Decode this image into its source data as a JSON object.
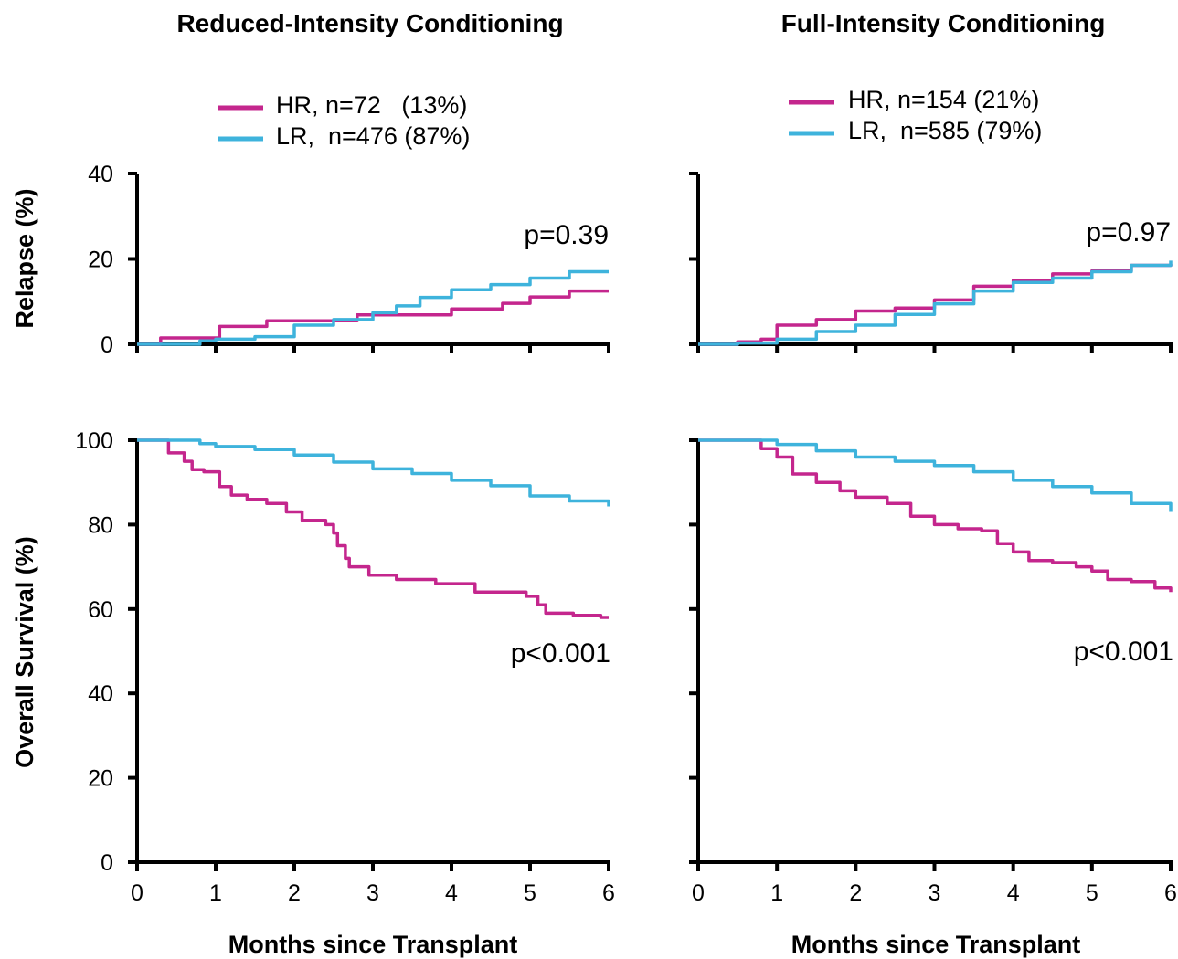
{
  "figure": {
    "columns": [
      {
        "title": "Reduced-Intensity Conditioning",
        "xlabel": "Months since Transplant",
        "legend": [
          {
            "label": "HR, n=72   (13%)",
            "color": "#c4268d"
          },
          {
            "label": "LR,  n=476 (87%)",
            "color": "#3eb3dc"
          }
        ]
      },
      {
        "title": "Full-Intensity Conditioning",
        "xlabel": "Months since Transplant",
        "legend": [
          {
            "label": "HR, n=154 (21%)",
            "color": "#c4268d"
          },
          {
            "label": "LR,  n=585 (79%)",
            "color": "#3eb3dc"
          }
        ]
      }
    ],
    "rows": [
      {
        "ylabel": "Relapse (%)"
      },
      {
        "ylabel": "Overall Survival (%)"
      }
    ]
  },
  "chart_data": [
    {
      "id": "relapse_ric",
      "type": "line",
      "step": true,
      "xlabel": "",
      "ylabel": "Relapse (%)",
      "xlim": [
        0,
        6
      ],
      "ylim": [
        0,
        40
      ],
      "xticks": [
        0,
        1,
        2,
        3,
        4,
        5,
        6
      ],
      "yticks": [
        0,
        20,
        40
      ],
      "annotation": "p=0.39",
      "series": [
        {
          "name": "HR",
          "color": "#c4268d",
          "x": [
            0,
            0.3,
            0.95,
            1.05,
            1.4,
            1.65,
            2.5,
            2.8,
            3.6,
            4.0,
            4.6,
            4.65,
            4.8,
            5.0,
            5.2,
            5.5,
            5.8,
            6.0
          ],
          "y": [
            0,
            1.5,
            1.5,
            4.2,
            4.2,
            5.5,
            5.5,
            6.9,
            6.9,
            8.3,
            8.3,
            9.6,
            9.6,
            11.1,
            11.1,
            12.5,
            12.5,
            12.5
          ]
        },
        {
          "name": "LR",
          "color": "#3eb3dc",
          "x": [
            0,
            0.4,
            0.8,
            1.0,
            1.5,
            2.0,
            2.5,
            3.0,
            3.3,
            3.6,
            4.0,
            4.5,
            5.0,
            5.5,
            6.0
          ],
          "y": [
            0,
            0,
            0.8,
            1.2,
            1.8,
            4.5,
            5.8,
            7.4,
            9.0,
            11.0,
            12.8,
            14.0,
            15.5,
            17.0,
            17.0
          ]
        }
      ]
    },
    {
      "id": "relapse_fic",
      "type": "line",
      "step": true,
      "xlabel": "",
      "ylabel": "",
      "xlim": [
        0,
        6
      ],
      "ylim": [
        0,
        40
      ],
      "xticks": [
        0,
        1,
        2,
        3,
        4,
        5,
        6
      ],
      "yticks": [
        0,
        20,
        40
      ],
      "annotation": "p=0.97",
      "series": [
        {
          "name": "HR",
          "color": "#c4268d",
          "x": [
            0,
            0.5,
            0.8,
            1.0,
            1.5,
            2.0,
            2.5,
            3.0,
            3.5,
            4.0,
            4.5,
            5.0,
            5.5,
            6.0
          ],
          "y": [
            0,
            0.6,
            1.2,
            4.5,
            5.8,
            7.8,
            8.5,
            10.4,
            13.6,
            15.0,
            16.5,
            17.2,
            18.5,
            18.8
          ]
        },
        {
          "name": "LR",
          "color": "#3eb3dc",
          "x": [
            0,
            0.5,
            1.0,
            1.5,
            2.0,
            2.5,
            3.0,
            3.5,
            4.0,
            4.5,
            5.0,
            5.5,
            6.0
          ],
          "y": [
            0,
            0.3,
            1.2,
            3.0,
            4.5,
            7.0,
            9.5,
            12.5,
            14.5,
            15.5,
            17.0,
            18.5,
            19.6
          ]
        }
      ]
    },
    {
      "id": "os_ric",
      "type": "line",
      "step": true,
      "xlabel": "Months since Transplant",
      "ylabel": "Overall Survival (%)",
      "xlim": [
        0,
        6
      ],
      "ylim": [
        0,
        100
      ],
      "xticks": [
        0,
        1,
        2,
        3,
        4,
        5,
        6
      ],
      "yticks": [
        0,
        20,
        40,
        60,
        80,
        100
      ],
      "annotation": "p<0.001",
      "series": [
        {
          "name": "HR",
          "color": "#c4268d",
          "x": [
            0,
            0.4,
            0.6,
            0.7,
            0.85,
            1.05,
            1.2,
            1.4,
            1.65,
            1.9,
            2.1,
            2.4,
            2.5,
            2.55,
            2.65,
            2.7,
            2.95,
            3.3,
            3.8,
            4.3,
            4.95,
            5.1,
            5.2,
            5.55,
            5.9,
            6.0
          ],
          "y": [
            100,
            97,
            95,
            93,
            92.5,
            89,
            87,
            86,
            85,
            83,
            81,
            80,
            78,
            75,
            72,
            70,
            68,
            67,
            66,
            64,
            63,
            61,
            59,
            58.5,
            58,
            58
          ]
        },
        {
          "name": "LR",
          "color": "#3eb3dc",
          "x": [
            0,
            0.5,
            0.8,
            1.0,
            1.5,
            2.0,
            2.5,
            3.0,
            3.5,
            4.0,
            4.5,
            5.0,
            5.5,
            6.0
          ],
          "y": [
            100,
            100,
            99.2,
            98.5,
            97.8,
            96.5,
            94.8,
            93.2,
            92.1,
            90.5,
            89.2,
            86.8,
            85.6,
            84.3
          ]
        }
      ]
    },
    {
      "id": "os_fic",
      "type": "line",
      "step": true,
      "xlabel": "Months since Transplant",
      "ylabel": "",
      "xlim": [
        0,
        6
      ],
      "ylim": [
        0,
        100
      ],
      "xticks": [
        0,
        1,
        2,
        3,
        4,
        5,
        6
      ],
      "yticks": [
        0,
        20,
        40,
        60,
        80,
        100
      ],
      "annotation": "p<0.001",
      "series": [
        {
          "name": "HR",
          "color": "#c4268d",
          "x": [
            0,
            0.5,
            0.8,
            1.0,
            1.2,
            1.5,
            1.8,
            2.0,
            2.4,
            2.7,
            3.0,
            3.3,
            3.6,
            3.8,
            4.0,
            4.2,
            4.5,
            4.8,
            5.0,
            5.2,
            5.5,
            5.8,
            6.0
          ],
          "y": [
            100,
            100,
            98,
            96,
            92,
            90,
            88,
            86.5,
            85,
            82,
            80,
            79,
            78.5,
            75.5,
            73.5,
            71.5,
            71,
            70,
            69,
            67,
            66.5,
            65,
            64
          ]
        },
        {
          "name": "LR",
          "color": "#3eb3dc",
          "x": [
            0,
            0.6,
            1.0,
            1.5,
            2.0,
            2.5,
            3.0,
            3.5,
            4.0,
            4.5,
            5.0,
            5.5,
            6.0
          ],
          "y": [
            100,
            100,
            99,
            97.5,
            96,
            95,
            94,
            92.5,
            90.5,
            89,
            87.5,
            85,
            83
          ]
        }
      ]
    }
  ]
}
